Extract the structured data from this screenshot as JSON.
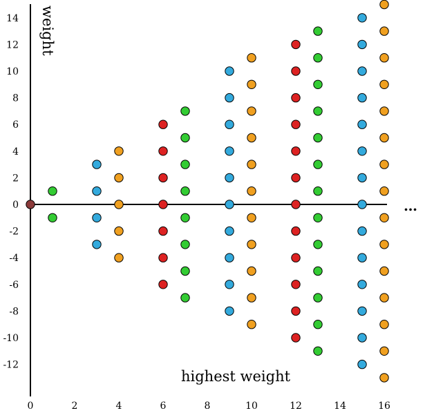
{
  "chart_data": {
    "type": "scatter",
    "title": "",
    "xlabel": "highest weight",
    "ylabel": "weight",
    "x_ticks": [
      "0",
      "2",
      "4",
      "6",
      "8",
      "10",
      "12",
      "14",
      "16"
    ],
    "y_ticks": [
      "14",
      "12",
      "10",
      "8",
      "6",
      "4",
      "2",
      "0",
      "-2",
      "-4",
      "-6",
      "-8",
      "-10",
      "-12"
    ],
    "xlim": [
      0,
      16
    ],
    "ylim": [
      -13,
      15
    ],
    "grid": false,
    "legend": "none",
    "continuation": "…",
    "colors": {
      "brown": "#8b3a3a",
      "green": "#33cc33",
      "blue": "#33aadd",
      "orange": "#f0a020",
      "red": "#dd2222"
    },
    "points": [
      {
        "x": 0,
        "y": 0,
        "color": "brown"
      },
      {
        "x": 1,
        "y": 1,
        "color": "green"
      },
      {
        "x": 1,
        "y": -1,
        "color": "green"
      },
      {
        "x": 3,
        "y": 3,
        "color": "blue"
      },
      {
        "x": 3,
        "y": 1,
        "color": "blue"
      },
      {
        "x": 3,
        "y": -1,
        "color": "blue"
      },
      {
        "x": 3,
        "y": -3,
        "color": "blue"
      },
      {
        "x": 4,
        "y": 4,
        "color": "orange"
      },
      {
        "x": 4,
        "y": 2,
        "color": "orange"
      },
      {
        "x": 4,
        "y": 0,
        "color": "orange"
      },
      {
        "x": 4,
        "y": -2,
        "color": "orange"
      },
      {
        "x": 4,
        "y": -4,
        "color": "orange"
      },
      {
        "x": 6,
        "y": 6,
        "color": "red"
      },
      {
        "x": 6,
        "y": 4,
        "color": "red"
      },
      {
        "x": 6,
        "y": 2,
        "color": "red"
      },
      {
        "x": 6,
        "y": 0,
        "color": "red"
      },
      {
        "x": 6,
        "y": -2,
        "color": "red"
      },
      {
        "x": 6,
        "y": -4,
        "color": "red"
      },
      {
        "x": 6,
        "y": -6,
        "color": "red"
      },
      {
        "x": 7,
        "y": 7,
        "color": "green"
      },
      {
        "x": 7,
        "y": 5,
        "color": "green"
      },
      {
        "x": 7,
        "y": 3,
        "color": "green"
      },
      {
        "x": 7,
        "y": 1,
        "color": "green"
      },
      {
        "x": 7,
        "y": -1,
        "color": "green"
      },
      {
        "x": 7,
        "y": -3,
        "color": "green"
      },
      {
        "x": 7,
        "y": -5,
        "color": "green"
      },
      {
        "x": 7,
        "y": -7,
        "color": "green"
      },
      {
        "x": 9,
        "y": 10,
        "color": "blue"
      },
      {
        "x": 9,
        "y": 8,
        "color": "blue"
      },
      {
        "x": 9,
        "y": 6,
        "color": "blue"
      },
      {
        "x": 9,
        "y": 4,
        "color": "blue"
      },
      {
        "x": 9,
        "y": 2,
        "color": "blue"
      },
      {
        "x": 9,
        "y": 0,
        "color": "blue"
      },
      {
        "x": 9,
        "y": -2,
        "color": "blue"
      },
      {
        "x": 9,
        "y": -4,
        "color": "blue"
      },
      {
        "x": 9,
        "y": -6,
        "color": "blue"
      },
      {
        "x": 9,
        "y": -8,
        "color": "blue"
      },
      {
        "x": 10,
        "y": 11,
        "color": "orange"
      },
      {
        "x": 10,
        "y": 9,
        "color": "orange"
      },
      {
        "x": 10,
        "y": 7,
        "color": "orange"
      },
      {
        "x": 10,
        "y": 5,
        "color": "orange"
      },
      {
        "x": 10,
        "y": 3,
        "color": "orange"
      },
      {
        "x": 10,
        "y": 1,
        "color": "orange"
      },
      {
        "x": 10,
        "y": -1,
        "color": "orange"
      },
      {
        "x": 10,
        "y": -3,
        "color": "orange"
      },
      {
        "x": 10,
        "y": -5,
        "color": "orange"
      },
      {
        "x": 10,
        "y": -7,
        "color": "orange"
      },
      {
        "x": 10,
        "y": -9,
        "color": "orange"
      },
      {
        "x": 12,
        "y": 12,
        "color": "red"
      },
      {
        "x": 12,
        "y": 10,
        "color": "red"
      },
      {
        "x": 12,
        "y": 8,
        "color": "red"
      },
      {
        "x": 12,
        "y": 6,
        "color": "red"
      },
      {
        "x": 12,
        "y": 4,
        "color": "red"
      },
      {
        "x": 12,
        "y": 2,
        "color": "red"
      },
      {
        "x": 12,
        "y": 0,
        "color": "red"
      },
      {
        "x": 12,
        "y": -2,
        "color": "red"
      },
      {
        "x": 12,
        "y": -4,
        "color": "red"
      },
      {
        "x": 12,
        "y": -6,
        "color": "red"
      },
      {
        "x": 12,
        "y": -8,
        "color": "red"
      },
      {
        "x": 12,
        "y": -10,
        "color": "red"
      },
      {
        "x": 13,
        "y": 13,
        "color": "green"
      },
      {
        "x": 13,
        "y": 11,
        "color": "green"
      },
      {
        "x": 13,
        "y": 9,
        "color": "green"
      },
      {
        "x": 13,
        "y": 7,
        "color": "green"
      },
      {
        "x": 13,
        "y": 5,
        "color": "green"
      },
      {
        "x": 13,
        "y": 3,
        "color": "green"
      },
      {
        "x": 13,
        "y": 1,
        "color": "green"
      },
      {
        "x": 13,
        "y": -1,
        "color": "green"
      },
      {
        "x": 13,
        "y": -3,
        "color": "green"
      },
      {
        "x": 13,
        "y": -5,
        "color": "green"
      },
      {
        "x": 13,
        "y": -7,
        "color": "green"
      },
      {
        "x": 13,
        "y": -9,
        "color": "green"
      },
      {
        "x": 13,
        "y": -11,
        "color": "green"
      },
      {
        "x": 15,
        "y": 14,
        "color": "blue"
      },
      {
        "x": 15,
        "y": 12,
        "color": "blue"
      },
      {
        "x": 15,
        "y": 10,
        "color": "blue"
      },
      {
        "x": 15,
        "y": 8,
        "color": "blue"
      },
      {
        "x": 15,
        "y": 6,
        "color": "blue"
      },
      {
        "x": 15,
        "y": 4,
        "color": "blue"
      },
      {
        "x": 15,
        "y": 2,
        "color": "blue"
      },
      {
        "x": 15,
        "y": 0,
        "color": "blue"
      },
      {
        "x": 15,
        "y": -2,
        "color": "blue"
      },
      {
        "x": 15,
        "y": -4,
        "color": "blue"
      },
      {
        "x": 15,
        "y": -6,
        "color": "blue"
      },
      {
        "x": 15,
        "y": -8,
        "color": "blue"
      },
      {
        "x": 15,
        "y": -10,
        "color": "blue"
      },
      {
        "x": 15,
        "y": -12,
        "color": "blue"
      },
      {
        "x": 16,
        "y": 15,
        "color": "orange"
      },
      {
        "x": 16,
        "y": 13,
        "color": "orange"
      },
      {
        "x": 16,
        "y": 11,
        "color": "orange"
      },
      {
        "x": 16,
        "y": 9,
        "color": "orange"
      },
      {
        "x": 16,
        "y": 7,
        "color": "orange"
      },
      {
        "x": 16,
        "y": 5,
        "color": "orange"
      },
      {
        "x": 16,
        "y": 3,
        "color": "orange"
      },
      {
        "x": 16,
        "y": 1,
        "color": "orange"
      },
      {
        "x": 16,
        "y": -1,
        "color": "orange"
      },
      {
        "x": 16,
        "y": -3,
        "color": "orange"
      },
      {
        "x": 16,
        "y": -5,
        "color": "orange"
      },
      {
        "x": 16,
        "y": -7,
        "color": "orange"
      },
      {
        "x": 16,
        "y": -9,
        "color": "orange"
      },
      {
        "x": 16,
        "y": -11,
        "color": "orange"
      },
      {
        "x": 16,
        "y": -13,
        "color": "orange"
      }
    ]
  }
}
